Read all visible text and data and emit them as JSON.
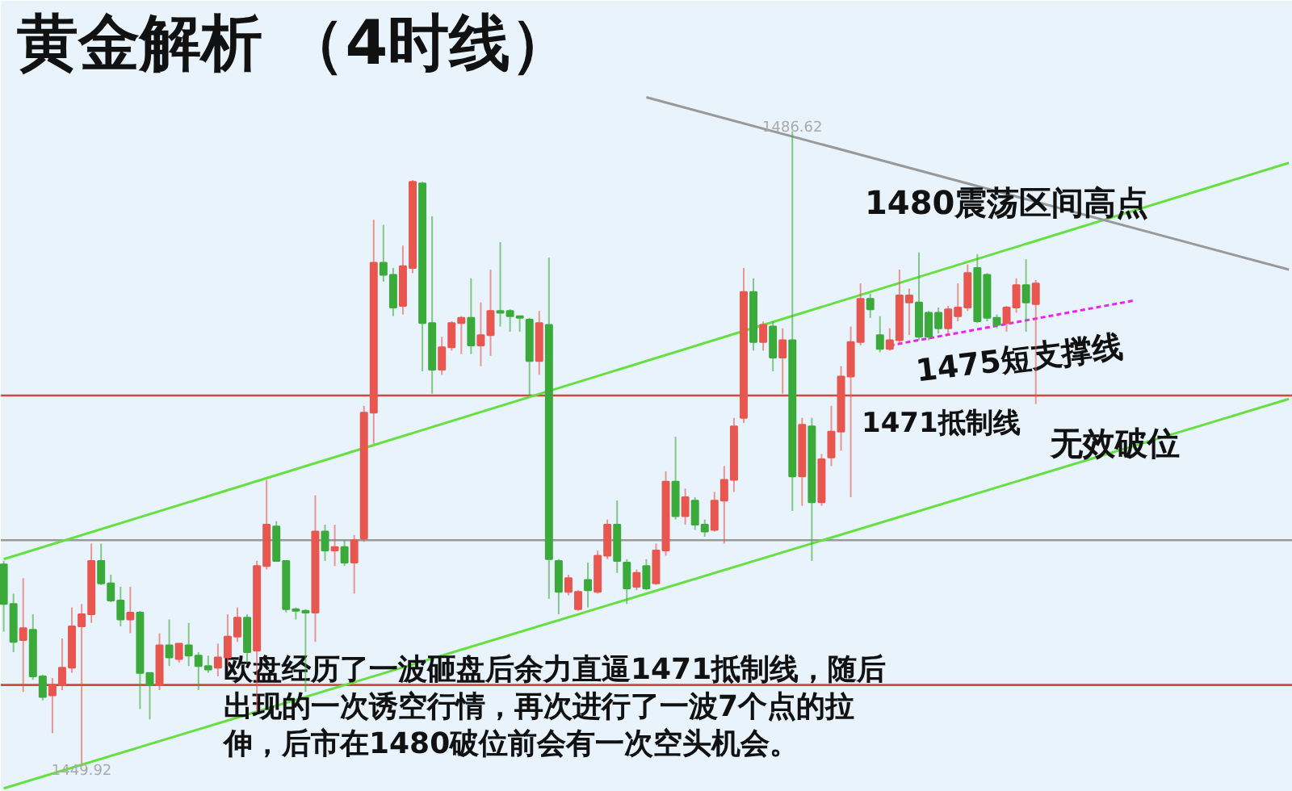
{
  "chart_data": {
    "type": "candlestick",
    "title": "黄金解析 （4时线）",
    "categories": [
      null,
      null,
      null,
      null,
      null,
      null,
      null,
      null,
      null,
      null,
      null,
      null,
      null,
      null,
      null,
      null,
      null,
      null,
      null,
      null,
      null,
      null,
      null,
      null,
      null,
      null,
      null,
      null,
      null,
      null,
      null,
      null,
      null,
      null,
      null,
      null,
      null,
      null,
      null,
      null,
      null,
      null,
      null,
      null,
      null,
      null,
      null,
      null,
      null,
      null,
      null,
      null,
      null,
      null,
      null,
      null,
      null,
      null,
      null,
      null,
      null,
      null,
      null,
      null,
      null,
      null,
      null,
      null,
      null,
      null,
      null,
      null,
      null,
      null,
      null,
      null,
      null,
      null,
      null,
      null,
      null,
      null,
      null,
      null,
      null,
      null,
      null,
      null,
      null,
      null,
      null,
      null,
      null,
      null,
      null,
      null,
      null,
      null,
      null,
      null,
      null,
      null,
      null,
      null,
      null,
      null,
      null,
      null,
      null,
      null,
      null,
      null,
      null,
      null,
      null,
      null,
      null,
      null,
      null,
      null,
      null,
      null,
      null,
      null,
      null,
      null,
      null,
      null,
      null,
      null,
      null,
      null,
      null
    ],
    "ohlc": [
      [
        1461.5,
        1461.7,
        1457.6,
        1459.2
      ],
      [
        1459.2,
        1459.8,
        1456.4,
        1457.0
      ],
      [
        1457.1,
        1460.7,
        1454.1,
        1457.8
      ],
      [
        1457.7,
        1458.6,
        1454.8,
        1455.0
      ],
      [
        1455.0,
        1455.1,
        1453.6,
        1453.8
      ],
      [
        1453.9,
        1454.9,
        1451.7,
        1454.5
      ],
      [
        1454.5,
        1457.2,
        1454.2,
        1455.5
      ],
      [
        1455.5,
        1459.0,
        1455.2,
        1457.9
      ],
      [
        1457.9,
        1459.2,
        1449.92,
        1458.6
      ],
      [
        1458.6,
        1462.7,
        1458.1,
        1461.7
      ],
      [
        1461.7,
        1462.7,
        1460.3,
        1460.4
      ],
      [
        1460.4,
        1460.9,
        1459.3,
        1459.4
      ],
      [
        1459.4,
        1460.2,
        1457.9,
        1458.3
      ],
      [
        1458.3,
        1460.2,
        1457.5,
        1458.7
      ],
      [
        1458.7,
        1458.8,
        1453.1,
        1455.2
      ],
      [
        1455.2,
        1455.2,
        1452.5,
        1454.5
      ],
      [
        1454.5,
        1457.5,
        1454.2,
        1456.8
      ],
      [
        1456.8,
        1458.3,
        1455.6,
        1456.1
      ],
      [
        1456.0,
        1456.9,
        1455.8,
        1456.9
      ],
      [
        1456.8,
        1458.1,
        1455.6,
        1456.2
      ],
      [
        1456.2,
        1456.4,
        1454.2,
        1455.6
      ],
      [
        1455.6,
        1456.2,
        1455.2,
        1455.4
      ],
      [
        1455.5,
        1456.9,
        1455.0,
        1456.1
      ],
      [
        1456.1,
        1458.6,
        1455.6,
        1457.3
      ],
      [
        1457.3,
        1459.0,
        1457.0,
        1458.4
      ],
      [
        1458.4,
        1458.6,
        1455.8,
        1456.4
      ],
      [
        1456.5,
        1461.7,
        1453.0,
        1461.4
      ],
      [
        1461.4,
        1466.4,
        1461.2,
        1463.8
      ],
      [
        1463.7,
        1464.0,
        1461.7,
        1461.7
      ],
      [
        1461.7,
        1461.7,
        1458.7,
        1458.9
      ],
      [
        1458.9,
        1459.0,
        1458.3,
        1458.8
      ],
      [
        1458.8,
        1458.9,
        1454.1,
        1458.7
      ],
      [
        1458.7,
        1465.5,
        1457.0,
        1463.4
      ],
      [
        1463.4,
        1463.8,
        1461.7,
        1462.3
      ],
      [
        1462.3,
        1463.8,
        1461.4,
        1462.5
      ],
      [
        1462.5,
        1462.9,
        1461.4,
        1461.6
      ],
      [
        1461.6,
        1463.2,
        1459.8,
        1462.9
      ],
      [
        1463.0,
        1470.7,
        1462.8,
        1470.3
      ],
      [
        1470.3,
        1481.5,
        1468.5,
        1479.0
      ],
      [
        1479.0,
        1481.2,
        1477.9,
        1478.3
      ],
      [
        1478.3,
        1478.7,
        1475.9,
        1476.4
      ],
      [
        1476.5,
        1480.0,
        1476.0,
        1478.8
      ],
      [
        1478.7,
        1483.8,
        1478.4,
        1483.7
      ],
      [
        1483.6,
        1483.7,
        1472.7,
        1475.5
      ],
      [
        1475.5,
        1481.7,
        1471.4,
        1472.8
      ],
      [
        1472.8,
        1474.7,
        1472.5,
        1474.1
      ],
      [
        1474.1,
        1475.6,
        1473.9,
        1475.5
      ],
      [
        1475.5,
        1475.9,
        1473.7,
        1475.8
      ],
      [
        1475.8,
        1478.1,
        1473.7,
        1474.2
      ],
      [
        1474.2,
        1476.7,
        1473.0,
        1474.8
      ],
      [
        1474.8,
        1478.6,
        1473.6,
        1476.2
      ],
      [
        1476.2,
        1480.2,
        1475.3,
        1476.1
      ],
      [
        1476.2,
        1476.3,
        1475.0,
        1475.9
      ],
      [
        1475.9,
        1475.9,
        1475.0,
        1475.8
      ],
      [
        1475.7,
        1475.8,
        1471.3,
        1473.3
      ],
      [
        1473.3,
        1476.2,
        1472.5,
        1475.5
      ],
      [
        1475.4,
        1479.3,
        1459.5,
        1461.8
      ],
      [
        1461.7,
        1461.8,
        1458.6,
        1459.9
      ],
      [
        1459.9,
        1460.9,
        1459.7,
        1460.7
      ],
      [
        1458.9,
        1460.0,
        1458.8,
        1459.9
      ],
      [
        1460.6,
        1461.6,
        1459.0,
        1460.0
      ],
      [
        1459.9,
        1462.3,
        1459.8,
        1462.0
      ],
      [
        1462.0,
        1464.1,
        1461.8,
        1463.8
      ],
      [
        1463.8,
        1465.2,
        1461.0,
        1461.7
      ],
      [
        1461.6,
        1461.8,
        1459.2,
        1460.1
      ],
      [
        1460.2,
        1461.2,
        1460.0,
        1461.0
      ],
      [
        1461.4,
        1461.8,
        1460.0,
        1460.1
      ],
      [
        1460.4,
        1462.7,
        1460.3,
        1462.3
      ],
      [
        1462.3,
        1466.9,
        1462.0,
        1466.3
      ],
      [
        1466.3,
        1468.9,
        1464.1,
        1464.3
      ],
      [
        1464.3,
        1465.9,
        1463.8,
        1465.4
      ],
      [
        1465.2,
        1465.4,
        1463.5,
        1463.8
      ],
      [
        1463.8,
        1464.1,
        1463.1,
        1463.4
      ],
      [
        1463.5,
        1465.7,
        1463.4,
        1465.2
      ],
      [
        1465.2,
        1467.2,
        1462.7,
        1466.4
      ],
      [
        1466.4,
        1470.0,
        1465.7,
        1469.5
      ],
      [
        1470.0,
        1478.7,
        1469.7,
        1477.3
      ],
      [
        1477.3,
        1478.1,
        1473.9,
        1474.4
      ],
      [
        1474.4,
        1475.6,
        1473.9,
        1475.4
      ],
      [
        1475.3,
        1475.6,
        1472.7,
        1473.5
      ],
      [
        1473.5,
        1475.2,
        1471.4,
        1474.5
      ],
      [
        1474.5,
        1486.62,
        1464.6,
        1466.6
      ],
      [
        1466.6,
        1470.0,
        1464.9,
        1469.6
      ],
      [
        1469.5,
        1470.0,
        1461.7,
        1465.1
      ],
      [
        1465.1,
        1467.9,
        1464.9,
        1467.6
      ],
      [
        1467.7,
        1470.7,
        1467.2,
        1469.2
      ],
      [
        1469.2,
        1473.0,
        1468.1,
        1472.4
      ],
      [
        1472.4,
        1475.3,
        1465.4,
        1474.4
      ],
      [
        1474.4,
        1477.8,
        1474.2,
        1476.9
      ],
      [
        1476.9,
        1477.2,
        1475.8,
        1476.3
      ],
      [
        1474.8,
        1475.9,
        1473.8,
        1474.0
      ],
      [
        1474.0,
        1475.2,
        1473.9,
        1474.5
      ],
      [
        1474.5,
        1478.6,
        1474.3,
        1477.1
      ],
      [
        1476.7,
        1477.5,
        1474.8,
        1477.1
      ],
      [
        1476.7,
        1479.6,
        1474.5,
        1474.7
      ],
      [
        1476.1,
        1476.2,
        1474.5,
        1474.7
      ],
      [
        1476.1,
        1476.4,
        1474.9,
        1475.2
      ],
      [
        1475.2,
        1476.5,
        1474.8,
        1476.3
      ],
      [
        1475.9,
        1477.8,
        1475.6,
        1476.4
      ],
      [
        1476.4,
        1478.9,
        1476.2,
        1478.4
      ],
      [
        1478.7,
        1479.5,
        1475.5,
        1475.6
      ],
      [
        1478.3,
        1478.4,
        1475.6,
        1475.8
      ],
      [
        1475.8,
        1476.0,
        1475.2,
        1475.4
      ],
      [
        1475.5,
        1476.5,
        1475.0,
        1476.4
      ],
      [
        1476.4,
        1478.1,
        1476.1,
        1477.7
      ],
      [
        1477.7,
        1479.2,
        1475.0,
        1476.7
      ],
      [
        1476.6,
        1478.0,
        1470.8,
        1477.8
      ],
      null,
      null,
      null,
      null,
      null,
      null,
      null,
      null,
      null,
      null,
      null,
      null,
      null,
      null,
      null,
      null,
      null,
      null,
      null,
      null,
      null,
      null,
      null,
      null,
      null,
      null
    ],
    "series": [
      {
        "type": "line",
        "values": [
          1461.8,
          null,
          null,
          null,
          null,
          null,
          null,
          null,
          null,
          null,
          null,
          null,
          null,
          null,
          null,
          null,
          null,
          null,
          null,
          null,
          null,
          null,
          null,
          null,
          null,
          null,
          null,
          null,
          null,
          null,
          null,
          null,
          null,
          null,
          null,
          null,
          null,
          null,
          null,
          null,
          null,
          null,
          null,
          null,
          null,
          null,
          null,
          null,
          null,
          null,
          null,
          null,
          null,
          null,
          null,
          null,
          null,
          null,
          null,
          null,
          null,
          null,
          null,
          null,
          null,
          null,
          null,
          null,
          null,
          null,
          null,
          null,
          null,
          null,
          null,
          null,
          null,
          null,
          null,
          null,
          null,
          null,
          null,
          null,
          null,
          null,
          null,
          null,
          null,
          null,
          null,
          null,
          null,
          null,
          null,
          null,
          null,
          null,
          null,
          null,
          null,
          null,
          null,
          null,
          null,
          null,
          null,
          null,
          null,
          null,
          null,
          null,
          null,
          null,
          null,
          null,
          null,
          null,
          null,
          null,
          null,
          null,
          null,
          null,
          null,
          null,
          null,
          null,
          null,
          null,
          null,
          null,
          1484.8
        ],
        "color": "#66e040"
      },
      {
        "type": "line",
        "values": [
          1448.5,
          null,
          null,
          null,
          null,
          null,
          null,
          null,
          null,
          null,
          null,
          null,
          null,
          null,
          null,
          null,
          null,
          null,
          null,
          null,
          null,
          null,
          null,
          null,
          null,
          null,
          null,
          null,
          null,
          null,
          null,
          null,
          null,
          null,
          null,
          null,
          null,
          null,
          null,
          null,
          null,
          null,
          null,
          null,
          null,
          null,
          null,
          null,
          null,
          null,
          null,
          null,
          null,
          null,
          null,
          null,
          null,
          null,
          null,
          null,
          null,
          null,
          null,
          null,
          null,
          null,
          null,
          null,
          null,
          null,
          null,
          null,
          null,
          null,
          null,
          null,
          null,
          null,
          null,
          null,
          null,
          null,
          null,
          null,
          null,
          null,
          null,
          null,
          null,
          null,
          null,
          null,
          null,
          null,
          null,
          null,
          null,
          null,
          null,
          null,
          null,
          null,
          null,
          null,
          null,
          null,
          null,
          null,
          null,
          null,
          null,
          null,
          null,
          null,
          null,
          null,
          null,
          null,
          null,
          null,
          null,
          null,
          null,
          null,
          null,
          null,
          null,
          null,
          null,
          null,
          null,
          null,
          1471.1
        ],
        "color": "#66e040"
      },
      {
        "type": "line",
        "values": [
          null,
          null,
          null,
          null,
          null,
          null,
          null,
          null,
          null,
          null,
          null,
          null,
          null,
          null,
          null,
          null,
          null,
          null,
          null,
          null,
          null,
          null,
          null,
          null,
          null,
          null,
          null,
          null,
          null,
          null,
          null,
          null,
          null,
          null,
          null,
          null,
          null,
          null,
          null,
          null,
          null,
          null,
          null,
          null,
          null,
          null,
          null,
          null,
          null,
          null,
          null,
          null,
          null,
          null,
          null,
          null,
          null,
          null,
          null,
          null,
          null,
          null,
          null,
          null,
          null,
          null,
          1488.6,
          null,
          null,
          null,
          null,
          null,
          null,
          null,
          null,
          null,
          null,
          null,
          null,
          null,
          null,
          null,
          null,
          null,
          null,
          null,
          null,
          null,
          null,
          null,
          null,
          null,
          null,
          null,
          null,
          null,
          null,
          null,
          null,
          null,
          null,
          null,
          null,
          null,
          null,
          null,
          null,
          null,
          null,
          null,
          null,
          null,
          null,
          null,
          null,
          null,
          null,
          null,
          null,
          null,
          null,
          null,
          null,
          null,
          null,
          null,
          null,
          null,
          null,
          null,
          null,
          null,
          1478.6
        ],
        "color": "#999999"
      },
      {
        "type": "line",
        "name": "1475短支撑线",
        "values": [
          null,
          null,
          null,
          null,
          null,
          null,
          null,
          null,
          null,
          null,
          null,
          null,
          null,
          null,
          null,
          null,
          null,
          null,
          null,
          null,
          null,
          null,
          null,
          null,
          null,
          null,
          null,
          null,
          null,
          null,
          null,
          null,
          null,
          null,
          null,
          null,
          null,
          null,
          null,
          null,
          null,
          null,
          null,
          null,
          null,
          null,
          null,
          null,
          null,
          null,
          null,
          null,
          null,
          null,
          null,
          null,
          null,
          null,
          null,
          null,
          null,
          null,
          null,
          null,
          null,
          null,
          null,
          null,
          null,
          null,
          null,
          null,
          null,
          null,
          null,
          null,
          null,
          null,
          null,
          null,
          null,
          null,
          null,
          null,
          null,
          null,
          null,
          null,
          null,
          null,
          null,
          1474.2,
          null,
          null,
          null,
          null,
          null,
          null,
          null,
          null,
          null,
          null,
          null,
          null,
          null,
          null,
          null,
          null,
          null,
          null,
          null,
          null,
          null,
          null,
          null,
          null,
          1476.8,
          null,
          null,
          null,
          null,
          null,
          null,
          null,
          null,
          null,
          null,
          null,
          null,
          null,
          null,
          null,
          null
        ],
        "color": "#ee22ee",
        "line_style": "dashed"
      }
    ],
    "ref_lines": [
      {
        "axis": "y",
        "value": 1471.3,
        "label": "1471抵制线",
        "color": "#d04a3c"
      },
      {
        "axis": "y",
        "value": 1454.5,
        "color": "#d04a3c"
      },
      {
        "axis": "y",
        "value": 1462.9,
        "color": "#999999"
      }
    ],
    "annotations": [
      "1480震荡区间高点",
      "无效破位",
      "欧盘经历了一波砸盘后余力直逼1471抵制线，随后出现的一次诱空行情，再次进行了一波7个点的拉伸，后市在1480破位前会有一次空头机会。",
      {
        "text": "1486.62",
        "y": 1486.62
      },
      {
        "text": "1449.92",
        "y": 1449.92
      }
    ]
  }
}
